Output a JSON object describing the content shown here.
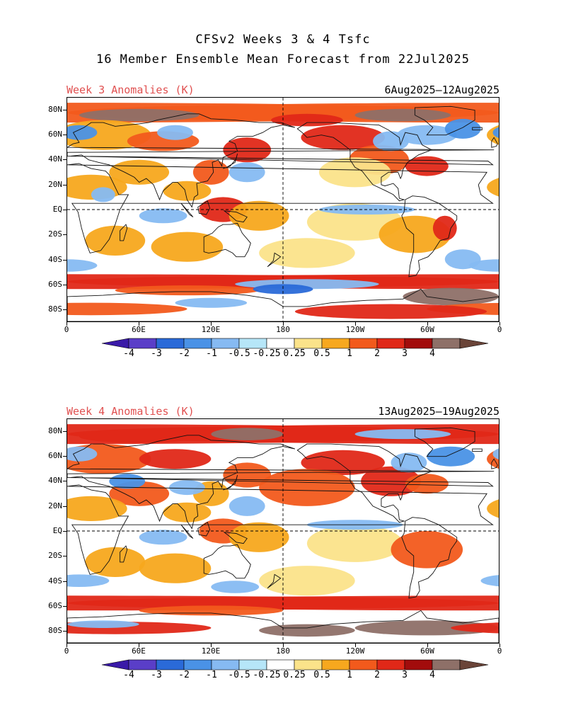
{
  "title_line1": "CFSv2 Weeks 3 & 4 Tsfc",
  "title_line2": "16 Member Ensemble Mean Forecast from 22Jul2025",
  "panels": [
    {
      "label": "Week 3 Anomalies (K)",
      "dates": "6Aug2025—12Aug2025"
    },
    {
      "label": "Week 4 Anomalies (K)",
      "dates": "13Aug2025—19Aug2025"
    }
  ],
  "lat_labels": [
    "80N",
    "60N",
    "40N",
    "20N",
    "EQ",
    "20S",
    "40S",
    "60S",
    "80S"
  ],
  "lon_labels": [
    "0",
    "60E",
    "120E",
    "180",
    "120W",
    "60W",
    "0"
  ],
  "colorbar": {
    "labels": [
      "-4",
      "-3",
      "-2",
      "-1",
      "-0.5",
      "-0.25",
      "0.25",
      "0.5",
      "1",
      "2",
      "3",
      "4"
    ],
    "colors": [
      "#3a1aa8",
      "#5a3ec8",
      "#2a6ad8",
      "#4a92e6",
      "#86baf2",
      "#b6e6f8",
      "#ffffff",
      "#fbe38a",
      "#f7a81e",
      "#f25a1c",
      "#e02818",
      "#a20c0c",
      "#8e7068",
      "#6a4438"
    ]
  },
  "map_colors": {
    "bg": "#ffffff",
    "warm_light": "#fbe38a",
    "warm": "#f7a81e",
    "hot": "#f25a1c",
    "very_hot": "#e02818",
    "extreme": "#a20c0c",
    "brown": "#8e7068",
    "cool_light": "#b6e6f8",
    "cool": "#86baf2",
    "cold": "#4a92e6",
    "very_cold": "#2a6ad8",
    "coast": "#111111"
  }
}
